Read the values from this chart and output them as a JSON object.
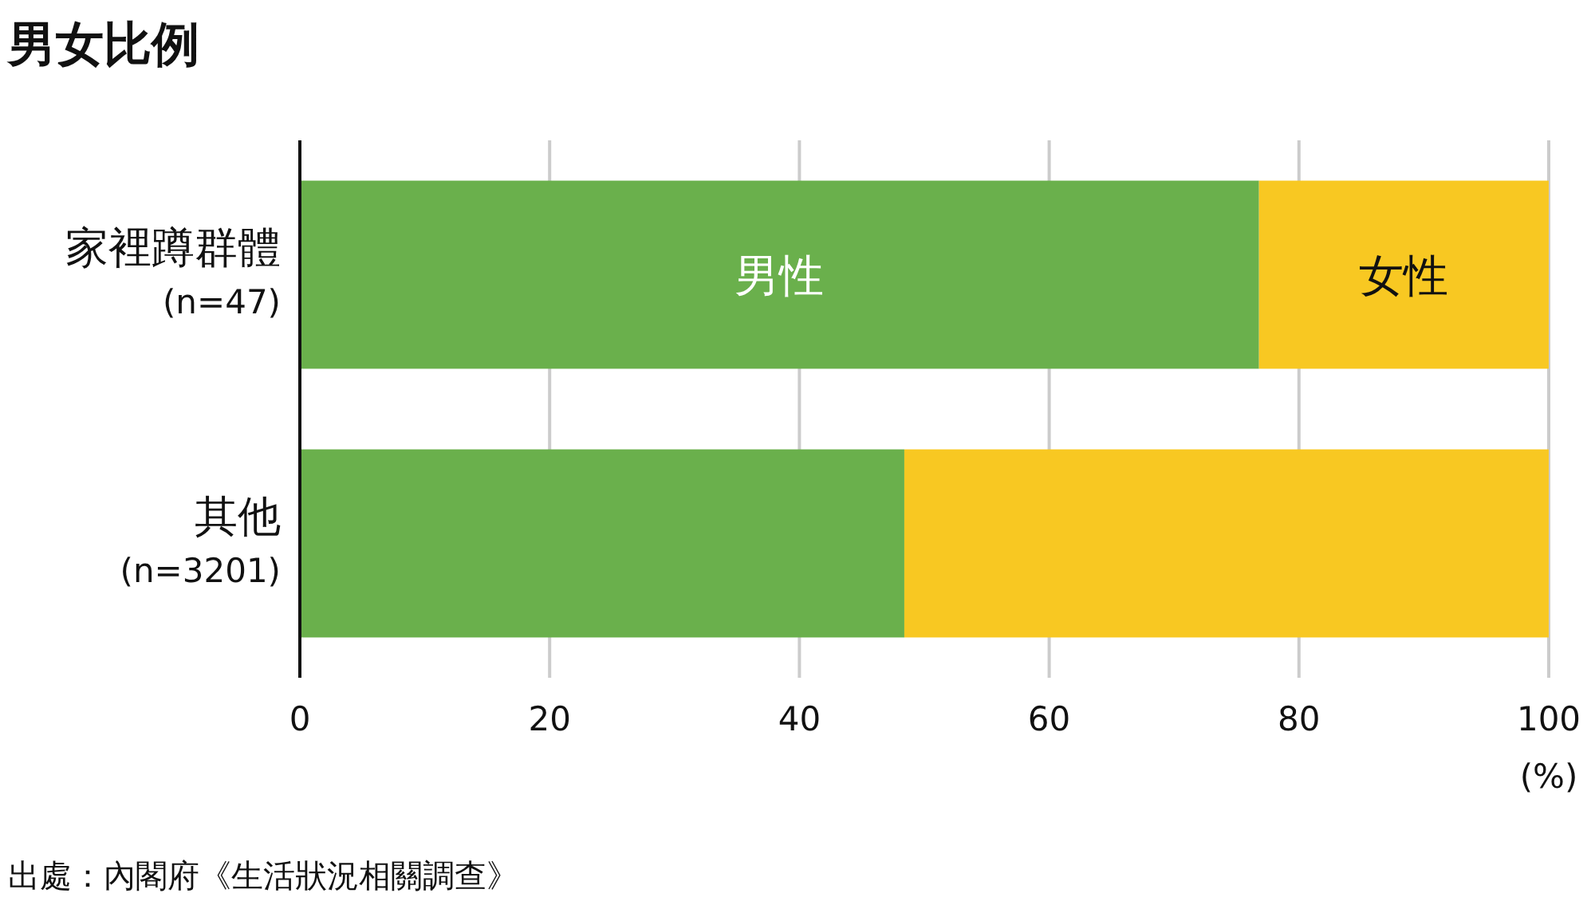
{
  "chart_data": {
    "type": "bar",
    "orientation": "horizontal",
    "stacked": true,
    "title": "男女比例",
    "xlabel": "(%)",
    "categories": [
      "家裡蹲群體\n(n=47)",
      "其他\n(n=3201)"
    ],
    "series": [
      {
        "name": "男性",
        "color": "#6ab04c",
        "values": [
          76.8,
          48.4
        ]
      },
      {
        "name": "女性",
        "color": "#f8c822",
        "values": [
          23.2,
          51.6
        ]
      }
    ],
    "xlim": [
      0,
      100
    ],
    "xticks": [
      0,
      20,
      40,
      60,
      80,
      100
    ],
    "grid": "x",
    "legend": false,
    "annotations": [
      "出處：內閣府《生活狀況相關調查》"
    ]
  }
}
